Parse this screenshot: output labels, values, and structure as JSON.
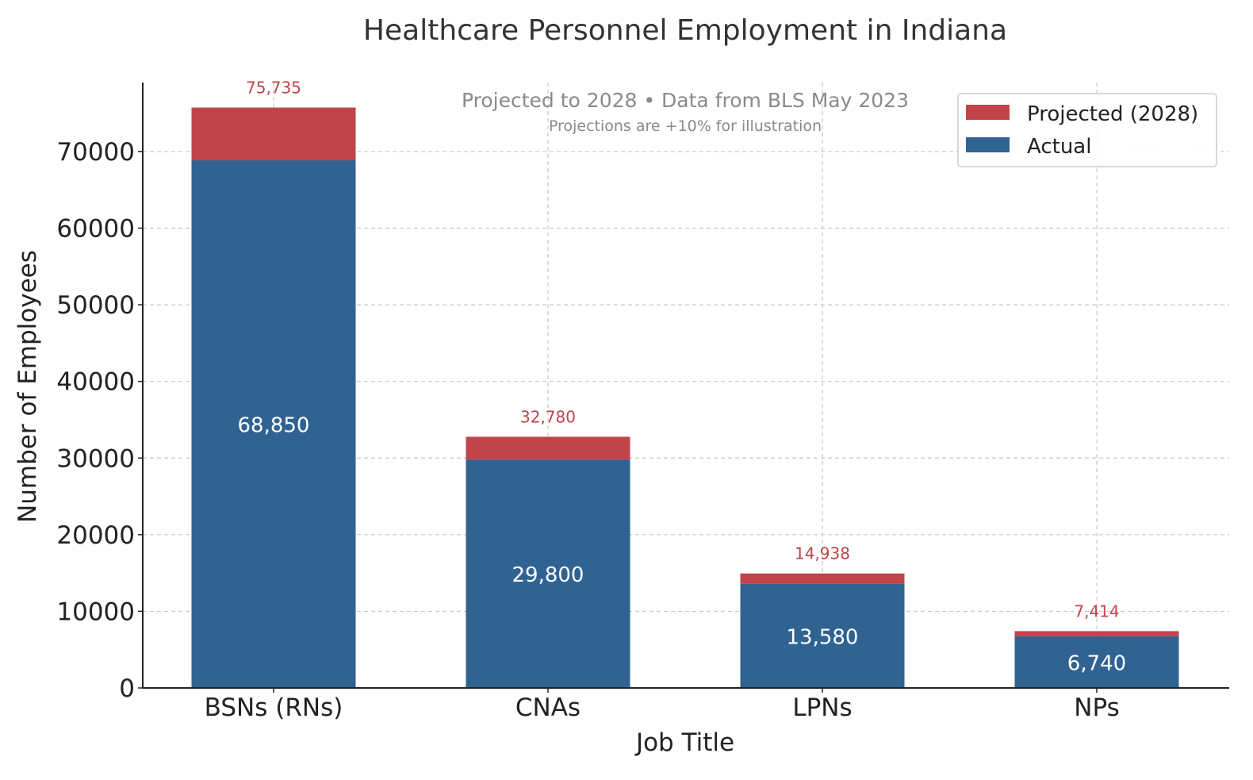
{
  "chart_data": {
    "type": "bar",
    "stacked": true,
    "title": "Healthcare Personnel Employment in Indiana",
    "subtitle": "Projected to 2028 • Data from BLS May 2023",
    "note": "Projections are +10% for illustration",
    "xlabel": "Job Title",
    "ylabel": "Number of Employees",
    "categories": [
      "BSNs (RNs)",
      "CNAs",
      "LPNs",
      "NPs"
    ],
    "series": [
      {
        "name": "Actual",
        "color": "#306392",
        "values": [
          68850,
          29800,
          13580,
          6740
        ]
      },
      {
        "name": "Projected (2028)",
        "color": "#c0444a",
        "values": [
          6885,
          2980,
          1358,
          674
        ]
      }
    ],
    "actual_labels": [
      "68,850",
      "29,800",
      "13,580",
      "6,740"
    ],
    "projected_total_labels": [
      "75,735",
      "32,780",
      "14,938",
      "7,414"
    ],
    "projected_label_color": "#c0444a",
    "ylim": [
      0,
      79000
    ],
    "yticks": [
      0,
      10000,
      20000,
      30000,
      40000,
      50000,
      60000,
      70000
    ],
    "ytick_labels": [
      "0",
      "10000",
      "20000",
      "30000",
      "40000",
      "50000",
      "60000",
      "70000"
    ],
    "grid": true,
    "legend": {
      "position": "top-right",
      "entries": [
        {
          "label": "Projected (2028)",
          "color": "#c0444a"
        },
        {
          "label": "Actual",
          "color": "#306392"
        }
      ]
    }
  }
}
